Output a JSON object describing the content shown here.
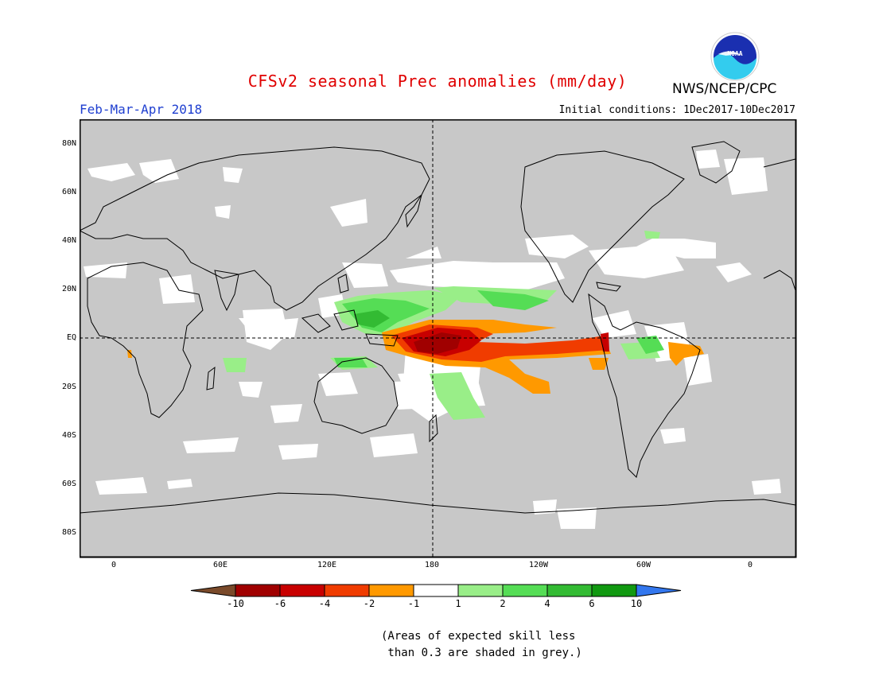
{
  "header": {
    "title": "CFSv2 seasonal Prec anomalies (mm/day)",
    "period": "Feb-Mar-Apr 2018",
    "agency": "NWS/NCEP/CPC",
    "initial_conditions": "Initial conditions: 1Dec2017-10Dec2017",
    "logo_text": "NOAA"
  },
  "map": {
    "lat_labels": [
      "80N",
      "60N",
      "40N",
      "20N",
      "EQ",
      "20S",
      "40S",
      "60S",
      "80S"
    ],
    "lon_labels": [
      "0",
      "60E",
      "120E",
      "180",
      "120W",
      "60W",
      "0"
    ],
    "background_color": "#c8c8c8",
    "reference_lines": [
      "equator",
      "date line (180)"
    ]
  },
  "legend": {
    "tick_labels": [
      "-10",
      "-6",
      "-4",
      "-2",
      "-1",
      "1",
      "2",
      "4",
      "6",
      "10"
    ],
    "colors": [
      "#7a4a2a",
      "#a00000",
      "#c80000",
      "#f03c00",
      "#ff9900",
      "#ffffff",
      "#99ee88",
      "#55dd55",
      "#33bb33",
      "#119911",
      "#3377ee"
    ]
  },
  "footnote": {
    "line1": "(Areas of expected skill less",
    "line2": " than 0.3 are shaded in grey.)"
  },
  "colors": {
    "title": "#e00000",
    "period": "#1f3fd0",
    "mask_grey": "#c8c8c8"
  }
}
